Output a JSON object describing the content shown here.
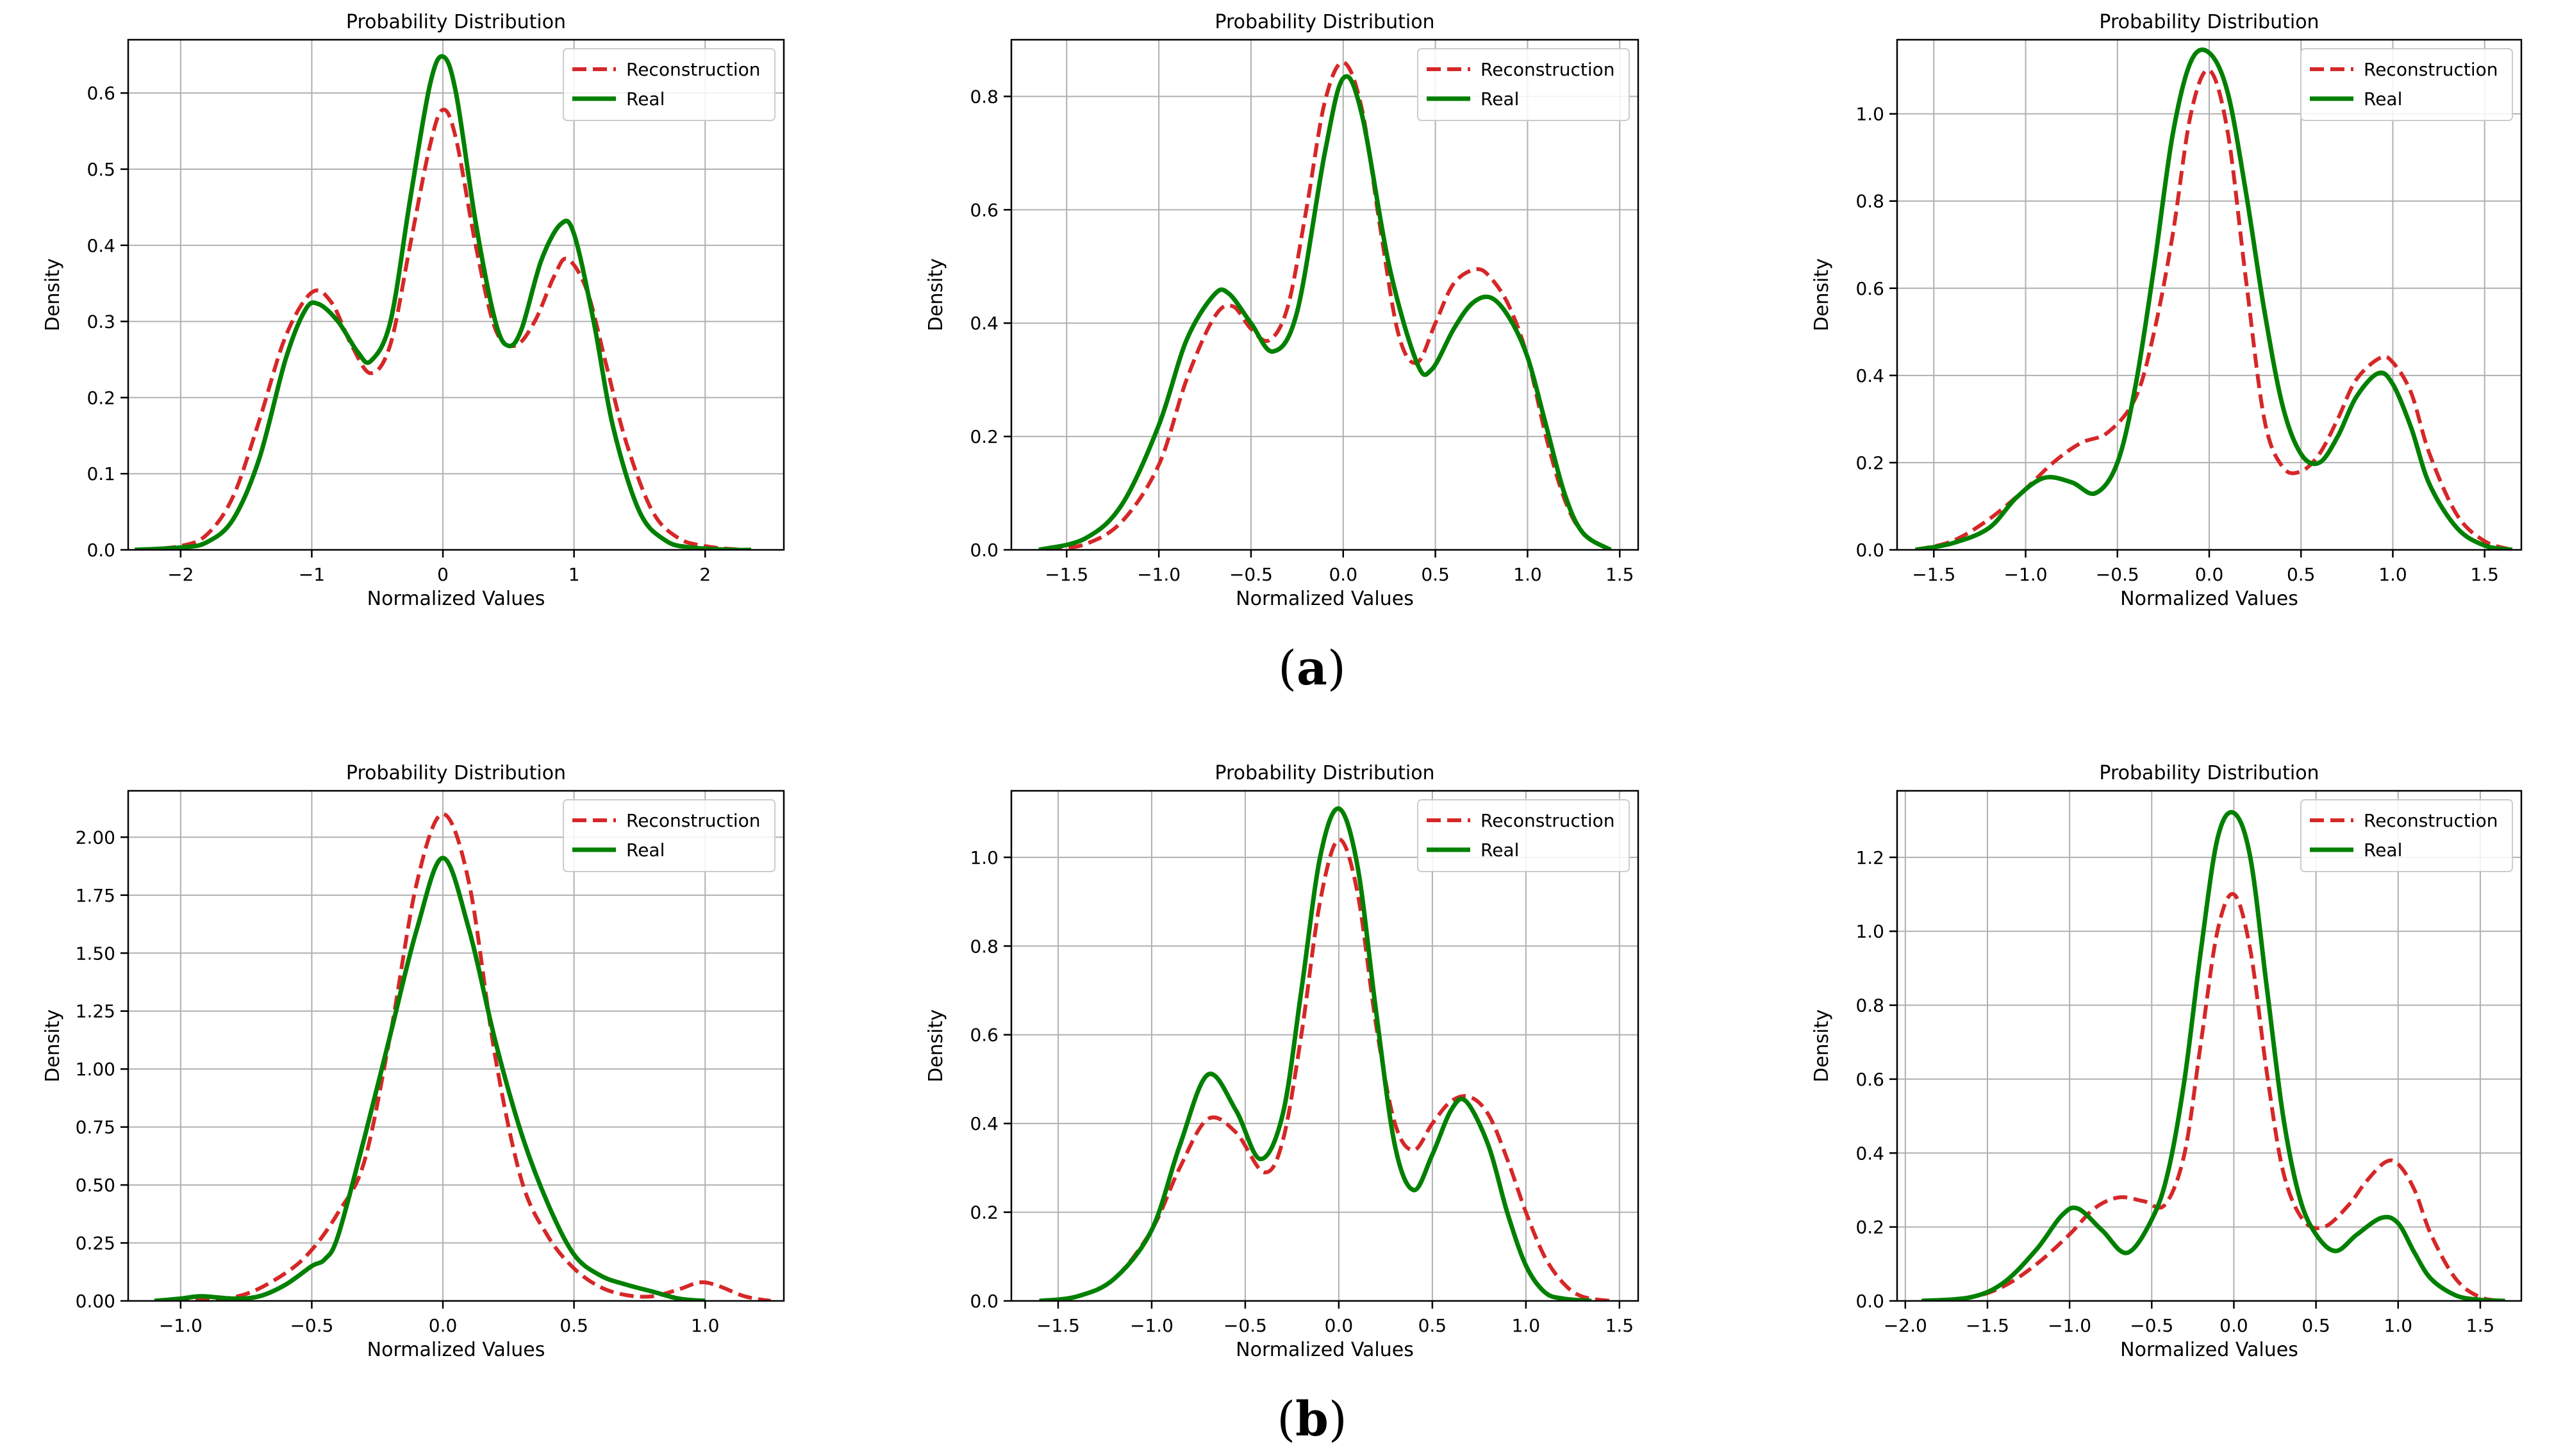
{
  "figure": {
    "panel_labels": [
      {
        "open": "(",
        "letter": "a",
        "close": ")"
      },
      {
        "open": "(",
        "letter": "b",
        "close": ")"
      }
    ],
    "colors": {
      "reconstruction": "#d62728",
      "real": "#008000",
      "grid": "#b0b0b0",
      "axes": "#000000"
    }
  },
  "chart_data": [
    {
      "type": "line",
      "panel": "a",
      "title": "Probability Distribution",
      "xlabel": "Normalized Values",
      "ylabel": "Density",
      "xlim": [
        -2.4,
        2.6
      ],
      "ylim": [
        0,
        0.67
      ],
      "xticks": [
        -2,
        -1,
        0,
        1,
        2
      ],
      "xtick_labels": [
        "−2",
        "−1",
        "0",
        "1",
        "2"
      ],
      "yticks": [
        0,
        0.1,
        0.2,
        0.3,
        0.4,
        0.5,
        0.6
      ],
      "ytick_labels": [
        "0.0",
        "0.1",
        "0.2",
        "0.3",
        "0.4",
        "0.5",
        "0.6"
      ],
      "legend": [
        "Reconstruction",
        "Real"
      ],
      "legend_loc": "upper right",
      "grid": true,
      "series": [
        {
          "name": "Reconstruction",
          "style": "dashed",
          "x": [
            -2.3,
            -2.0,
            -1.8,
            -1.6,
            -1.4,
            -1.2,
            -1.0,
            -0.85,
            -0.7,
            -0.55,
            -0.4,
            -0.25,
            -0.1,
            0.0,
            0.1,
            0.25,
            0.4,
            0.55,
            0.7,
            0.85,
            0.95,
            1.1,
            1.25,
            1.4,
            1.6,
            1.8,
            2.0,
            2.2,
            2.35
          ],
          "y": [
            0.0,
            0.005,
            0.02,
            0.07,
            0.17,
            0.28,
            0.338,
            0.325,
            0.27,
            0.232,
            0.27,
            0.4,
            0.53,
            0.578,
            0.54,
            0.4,
            0.29,
            0.268,
            0.3,
            0.36,
            0.382,
            0.34,
            0.24,
            0.14,
            0.05,
            0.015,
            0.005,
            0.001,
            0.0
          ]
        },
        {
          "name": "Real",
          "style": "solid",
          "x": [
            -2.35,
            -2.0,
            -1.8,
            -1.6,
            -1.4,
            -1.2,
            -1.05,
            -0.95,
            -0.8,
            -0.65,
            -0.55,
            -0.4,
            -0.25,
            -0.1,
            0.0,
            0.1,
            0.25,
            0.4,
            0.5,
            0.6,
            0.75,
            0.9,
            1.0,
            1.15,
            1.3,
            1.5,
            1.7,
            1.9,
            2.2,
            2.35
          ],
          "y": [
            0.0,
            0.003,
            0.01,
            0.04,
            0.12,
            0.25,
            0.315,
            0.323,
            0.3,
            0.26,
            0.248,
            0.3,
            0.46,
            0.61,
            0.648,
            0.6,
            0.43,
            0.3,
            0.268,
            0.29,
            0.38,
            0.428,
            0.415,
            0.3,
            0.16,
            0.05,
            0.012,
            0.003,
            0.0,
            0.0
          ]
        }
      ]
    },
    {
      "type": "line",
      "panel": "a",
      "title": "Probability Distribution",
      "xlabel": "Normalized Values",
      "ylabel": "Density",
      "xlim": [
        -1.8,
        1.6
      ],
      "ylim": [
        0,
        0.9
      ],
      "xticks": [
        -1.5,
        -1.0,
        -0.5,
        0.0,
        0.5,
        1.0,
        1.5
      ],
      "xtick_labels": [
        "−1.5",
        "−1.0",
        "−0.5",
        "0.0",
        "0.5",
        "1.0",
        "1.5"
      ],
      "yticks": [
        0,
        0.2,
        0.4,
        0.6,
        0.8
      ],
      "ytick_labels": [
        "0.0",
        "0.2",
        "0.4",
        "0.6",
        "0.8"
      ],
      "legend": [
        "Reconstruction",
        "Real"
      ],
      "legend_loc": "upper right",
      "grid": true,
      "series": [
        {
          "name": "Reconstruction",
          "style": "dashed",
          "x": [
            -1.6,
            -1.4,
            -1.2,
            -1.0,
            -0.85,
            -0.7,
            -0.6,
            -0.5,
            -0.4,
            -0.3,
            -0.2,
            -0.1,
            0.0,
            0.1,
            0.2,
            0.3,
            0.4,
            0.5,
            0.6,
            0.72,
            0.8,
            0.9,
            1.0,
            1.1,
            1.2,
            1.3,
            1.45
          ],
          "y": [
            0.0,
            0.01,
            0.05,
            0.15,
            0.3,
            0.41,
            0.43,
            0.39,
            0.37,
            0.43,
            0.6,
            0.79,
            0.86,
            0.78,
            0.57,
            0.38,
            0.33,
            0.4,
            0.47,
            0.495,
            0.48,
            0.43,
            0.34,
            0.2,
            0.09,
            0.03,
            0.0
          ]
        },
        {
          "name": "Real",
          "style": "solid",
          "x": [
            -1.65,
            -1.4,
            -1.2,
            -1.0,
            -0.85,
            -0.7,
            -0.62,
            -0.5,
            -0.38,
            -0.25,
            -0.1,
            0.0,
            0.1,
            0.25,
            0.4,
            0.48,
            0.6,
            0.7,
            0.8,
            0.9,
            1.0,
            1.1,
            1.2,
            1.3,
            1.45
          ],
          "y": [
            0.0,
            0.02,
            0.08,
            0.22,
            0.37,
            0.45,
            0.452,
            0.4,
            0.35,
            0.42,
            0.7,
            0.832,
            0.77,
            0.5,
            0.33,
            0.318,
            0.39,
            0.435,
            0.445,
            0.41,
            0.34,
            0.22,
            0.1,
            0.03,
            0.0
          ]
        }
      ]
    },
    {
      "type": "line",
      "panel": "a",
      "title": "Probability Distribution",
      "xlabel": "Normalized Values",
      "ylabel": "Density",
      "xlim": [
        -1.7,
        1.7
      ],
      "ylim": [
        0,
        1.17
      ],
      "xticks": [
        -1.5,
        -1.0,
        -0.5,
        0.0,
        0.5,
        1.0,
        1.5
      ],
      "xtick_labels": [
        "−1.5",
        "−1.0",
        "−0.5",
        "0.0",
        "0.5",
        "1.0",
        "1.5"
      ],
      "yticks": [
        0,
        0.2,
        0.4,
        0.6,
        0.8,
        1.0
      ],
      "ytick_labels": [
        "0.0",
        "0.2",
        "0.4",
        "0.6",
        "0.8",
        "1.0"
      ],
      "legend": [
        "Reconstruction",
        "Real"
      ],
      "legend_loc": "upper right",
      "grid": true,
      "series": [
        {
          "name": "Reconstruction",
          "style": "dashed",
          "x": [
            -1.6,
            -1.4,
            -1.2,
            -1.0,
            -0.85,
            -0.7,
            -0.55,
            -0.4,
            -0.3,
            -0.2,
            -0.1,
            0.0,
            0.1,
            0.2,
            0.3,
            0.4,
            0.5,
            0.6,
            0.7,
            0.8,
            0.93,
            1.0,
            1.1,
            1.2,
            1.35,
            1.5,
            1.65
          ],
          "y": [
            0.0,
            0.02,
            0.07,
            0.14,
            0.2,
            0.245,
            0.27,
            0.35,
            0.5,
            0.72,
            1.0,
            1.1,
            0.96,
            0.62,
            0.3,
            0.19,
            0.18,
            0.22,
            0.3,
            0.39,
            0.44,
            0.43,
            0.36,
            0.22,
            0.08,
            0.02,
            0.0
          ]
        },
        {
          "name": "Real",
          "style": "solid",
          "x": [
            -1.6,
            -1.4,
            -1.2,
            -1.05,
            -0.9,
            -0.75,
            -0.62,
            -0.5,
            -0.4,
            -0.3,
            -0.2,
            -0.1,
            0.0,
            0.1,
            0.2,
            0.3,
            0.4,
            0.5,
            0.6,
            0.7,
            0.8,
            0.92,
            1.0,
            1.1,
            1.2,
            1.35,
            1.5,
            1.65
          ],
          "y": [
            0.0,
            0.015,
            0.05,
            0.12,
            0.165,
            0.155,
            0.13,
            0.2,
            0.38,
            0.65,
            0.95,
            1.12,
            1.14,
            1.05,
            0.82,
            0.55,
            0.33,
            0.22,
            0.2,
            0.26,
            0.35,
            0.405,
            0.38,
            0.28,
            0.15,
            0.05,
            0.01,
            0.0
          ]
        }
      ]
    },
    {
      "type": "line",
      "panel": "b",
      "title": "Probability Distribution",
      "xlabel": "Normalized Values",
      "ylabel": "Density",
      "xlim": [
        -1.2,
        1.3
      ],
      "ylim": [
        0,
        2.2
      ],
      "xticks": [
        -1.0,
        -0.5,
        0.0,
        0.5,
        1.0
      ],
      "xtick_labels": [
        "−1.0",
        "−0.5",
        "0.0",
        "0.5",
        "1.0"
      ],
      "yticks": [
        0,
        0.25,
        0.5,
        0.75,
        1.0,
        1.25,
        1.5,
        1.75,
        2.0
      ],
      "ytick_labels": [
        "0.00",
        "0.25",
        "0.50",
        "0.75",
        "1.00",
        "1.25",
        "1.50",
        "1.75",
        "2.00"
      ],
      "legend": [
        "Reconstruction",
        "Real"
      ],
      "legend_loc": "upper right",
      "grid": true,
      "series": [
        {
          "name": "Reconstruction",
          "style": "dashed",
          "x": [
            -1.1,
            -0.9,
            -0.75,
            -0.6,
            -0.5,
            -0.4,
            -0.3,
            -0.2,
            -0.1,
            0.0,
            0.1,
            0.2,
            0.3,
            0.4,
            0.5,
            0.6,
            0.7,
            0.8,
            0.9,
            0.98,
            1.05,
            1.15,
            1.25
          ],
          "y": [
            0.0,
            0.005,
            0.03,
            0.12,
            0.22,
            0.38,
            0.6,
            1.15,
            1.8,
            2.1,
            1.8,
            1.05,
            0.52,
            0.28,
            0.14,
            0.06,
            0.025,
            0.02,
            0.05,
            0.08,
            0.065,
            0.02,
            0.0
          ]
        },
        {
          "name": "Real",
          "style": "solid",
          "x": [
            -1.1,
            -1.0,
            -0.92,
            -0.8,
            -0.7,
            -0.6,
            -0.5,
            -0.45,
            -0.4,
            -0.3,
            -0.2,
            -0.1,
            0.0,
            0.1,
            0.2,
            0.3,
            0.4,
            0.5,
            0.6,
            0.7,
            0.8,
            0.9,
            1.0
          ],
          "y": [
            0.0,
            0.01,
            0.02,
            0.01,
            0.02,
            0.07,
            0.15,
            0.18,
            0.28,
            0.7,
            1.15,
            1.6,
            1.91,
            1.6,
            1.12,
            0.72,
            0.42,
            0.2,
            0.11,
            0.07,
            0.04,
            0.01,
            0.0
          ]
        }
      ]
    },
    {
      "type": "line",
      "panel": "b",
      "title": "Probability Distribution",
      "xlabel": "Normalized Values",
      "ylabel": "Density",
      "xlim": [
        -1.75,
        1.6
      ],
      "ylim": [
        0,
        1.15
      ],
      "xticks": [
        -1.5,
        -1.0,
        -0.5,
        0.0,
        0.5,
        1.0,
        1.5
      ],
      "xtick_labels": [
        "−1.5",
        "−1.0",
        "−0.5",
        "0.0",
        "0.5",
        "1.0",
        "1.5"
      ],
      "yticks": [
        0,
        0.2,
        0.4,
        0.6,
        0.8,
        1.0
      ],
      "ytick_labels": [
        "0.0",
        "0.2",
        "0.4",
        "0.6",
        "0.8",
        "1.0"
      ],
      "legend": [
        "Reconstruction",
        "Real"
      ],
      "legend_loc": "upper right",
      "grid": true,
      "series": [
        {
          "name": "Reconstruction",
          "style": "dashed",
          "x": [
            -1.6,
            -1.4,
            -1.2,
            -1.0,
            -0.85,
            -0.7,
            -0.55,
            -0.4,
            -0.3,
            -0.2,
            -0.1,
            0.0,
            0.1,
            0.2,
            0.3,
            0.4,
            0.5,
            0.6,
            0.7,
            0.8,
            0.9,
            1.0,
            1.1,
            1.2,
            1.3,
            1.45
          ],
          "y": [
            0.0,
            0.01,
            0.05,
            0.16,
            0.3,
            0.41,
            0.38,
            0.29,
            0.36,
            0.6,
            0.9,
            1.04,
            0.92,
            0.62,
            0.4,
            0.34,
            0.4,
            0.45,
            0.46,
            0.42,
            0.32,
            0.2,
            0.1,
            0.04,
            0.01,
            0.0
          ]
        },
        {
          "name": "Real",
          "style": "solid",
          "x": [
            -1.6,
            -1.4,
            -1.2,
            -1.0,
            -0.85,
            -0.7,
            -0.55,
            -0.42,
            -0.3,
            -0.2,
            -0.1,
            0.0,
            0.1,
            0.2,
            0.3,
            0.4,
            0.5,
            0.6,
            0.68,
            0.8,
            0.9,
            1.0,
            1.1,
            1.2,
            1.35
          ],
          "y": [
            0.0,
            0.01,
            0.05,
            0.16,
            0.35,
            0.51,
            0.43,
            0.32,
            0.42,
            0.7,
            1.0,
            1.11,
            0.98,
            0.65,
            0.35,
            0.25,
            0.33,
            0.43,
            0.45,
            0.35,
            0.2,
            0.08,
            0.02,
            0.005,
            0.0
          ]
        }
      ]
    },
    {
      "type": "line",
      "panel": "b",
      "title": "Probability Distribution",
      "xlabel": "Normalized Values",
      "ylabel": "Density",
      "xlim": [
        -2.05,
        1.75
      ],
      "ylim": [
        0,
        1.38
      ],
      "xticks": [
        -2.0,
        -1.5,
        -1.0,
        -0.5,
        0.0,
        0.5,
        1.0,
        1.5
      ],
      "xtick_labels": [
        "−2.0",
        "−1.5",
        "−1.0",
        "−0.5",
        "0.0",
        "0.5",
        "1.0",
        "1.5"
      ],
      "yticks": [
        0,
        0.2,
        0.4,
        0.6,
        0.8,
        1.0,
        1.2
      ],
      "ytick_labels": [
        "0.0",
        "0.2",
        "0.4",
        "0.6",
        "0.8",
        "1.0",
        "1.2"
      ],
      "legend": [
        "Reconstruction",
        "Real"
      ],
      "legend_loc": "upper right",
      "grid": true,
      "series": [
        {
          "name": "Reconstruction",
          "style": "dashed",
          "x": [
            -1.9,
            -1.6,
            -1.4,
            -1.2,
            -1.0,
            -0.85,
            -0.7,
            -0.55,
            -0.42,
            -0.3,
            -0.2,
            -0.1,
            0.0,
            0.1,
            0.2,
            0.3,
            0.42,
            0.55,
            0.7,
            0.8,
            0.92,
            1.0,
            1.1,
            1.2,
            1.35,
            1.5,
            1.65
          ],
          "y": [
            0.0,
            0.01,
            0.04,
            0.1,
            0.18,
            0.25,
            0.28,
            0.27,
            0.26,
            0.4,
            0.7,
            1.0,
            1.1,
            0.95,
            0.62,
            0.35,
            0.22,
            0.2,
            0.26,
            0.32,
            0.375,
            0.37,
            0.3,
            0.18,
            0.06,
            0.01,
            0.0
          ]
        },
        {
          "name": "Real",
          "style": "solid",
          "x": [
            -1.9,
            -1.6,
            -1.4,
            -1.2,
            -1.05,
            -0.95,
            -0.8,
            -0.65,
            -0.5,
            -0.4,
            -0.3,
            -0.2,
            -0.1,
            0.0,
            0.1,
            0.2,
            0.3,
            0.4,
            0.5,
            0.62,
            0.75,
            0.9,
            1.0,
            1.1,
            1.2,
            1.35,
            1.5,
            1.65
          ],
          "y": [
            0.0,
            0.01,
            0.05,
            0.14,
            0.23,
            0.25,
            0.19,
            0.13,
            0.22,
            0.35,
            0.6,
            0.95,
            1.25,
            1.32,
            1.2,
            0.85,
            0.5,
            0.28,
            0.18,
            0.135,
            0.18,
            0.225,
            0.21,
            0.13,
            0.06,
            0.015,
            0.003,
            0.0
          ]
        }
      ]
    }
  ]
}
